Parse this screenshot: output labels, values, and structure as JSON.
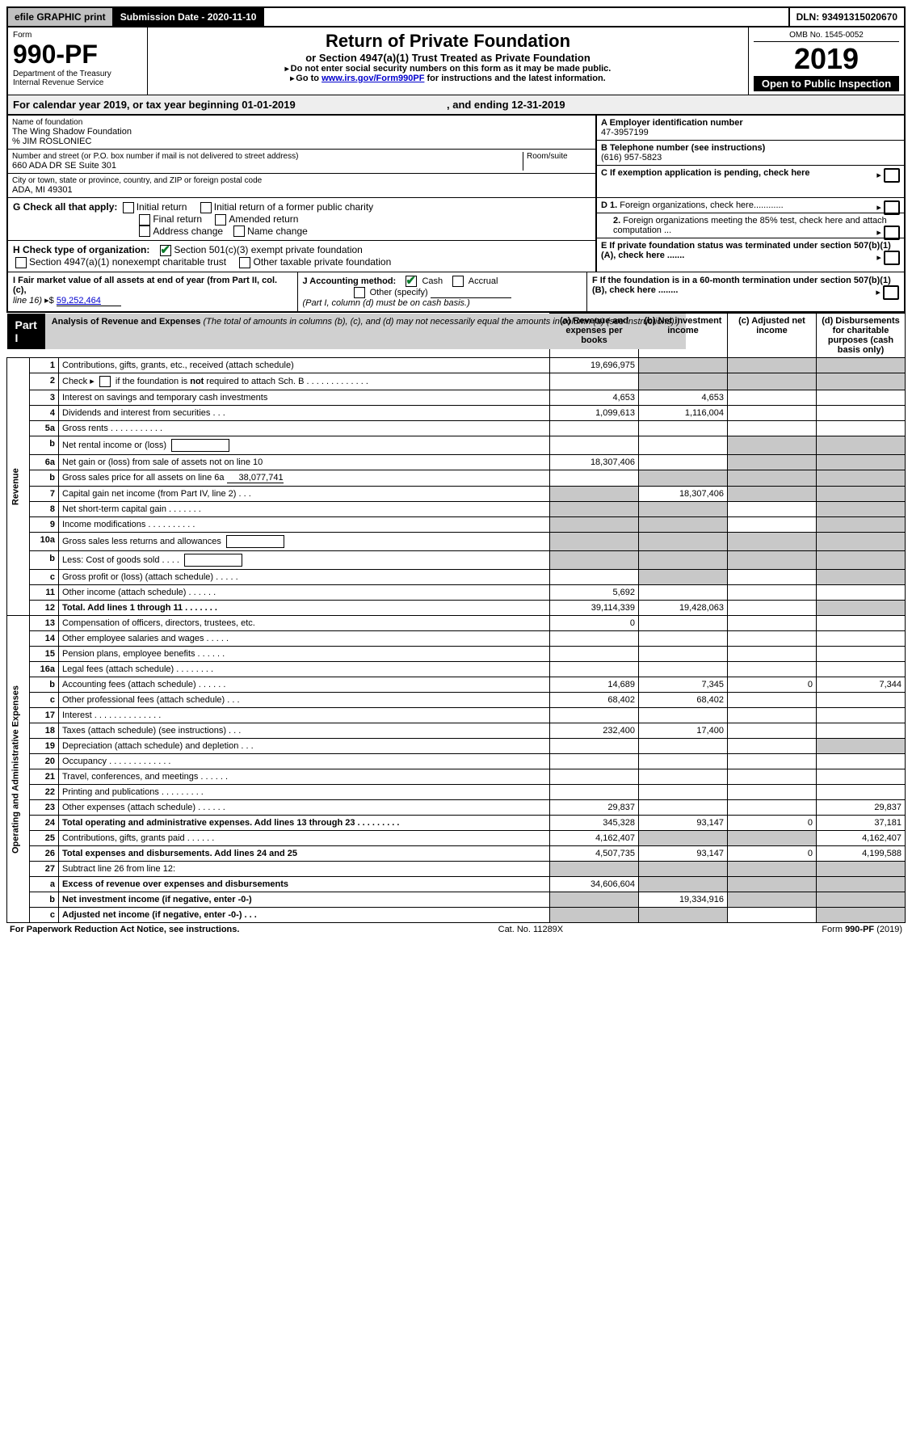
{
  "topbar": {
    "efile": "efile GRAPHIC print",
    "subdate_label": "Submission Date - 2020-11-10",
    "dln": "DLN: 93491315020670"
  },
  "header": {
    "form_label": "Form",
    "form_number": "990-PF",
    "dept": "Department of the Treasury",
    "irs": "Internal Revenue Service",
    "title": "Return of Private Foundation",
    "subtitle": "or Section 4947(a)(1) Trust Treated as Private Foundation",
    "note1": "Do not enter social security numbers on this form as it may be made public.",
    "note2_pre": "Go to ",
    "note2_link": "www.irs.gov/Form990PF",
    "note2_post": " for instructions and the latest information.",
    "omb": "OMB No. 1545-0052",
    "year": "2019",
    "open": "Open to Public Inspection"
  },
  "calyear": {
    "text_pre": "For calendar year 2019, or tax year beginning ",
    "begin": "01-01-2019",
    "mid": " , and ending ",
    "end": "12-31-2019"
  },
  "ident": {
    "name_label": "Name of foundation",
    "name": "The Wing Shadow Foundation",
    "care_of": "% JIM ROSLONIEC",
    "addr_label": "Number and street (or P.O. box number if mail is not delivered to street address)",
    "addr": "660 ADA DR SE Suite 301",
    "room_label": "Room/suite",
    "city_label": "City or town, state or province, country, and ZIP or foreign postal code",
    "city": "ADA, MI  49301",
    "A_label": "A Employer identification number",
    "A_val": "47-3957199",
    "B_label": "B Telephone number (see instructions)",
    "B_val": "(616) 957-5823",
    "C_label": "C If exemption application is pending, check here"
  },
  "checks": {
    "G_label": "G Check all that apply:",
    "G_opts": [
      "Initial return",
      "Initial return of a former public charity",
      "Final return",
      "Amended return",
      "Address change",
      "Name change"
    ],
    "H_label": "H Check type of organization:",
    "H_opt1": "Section 501(c)(3) exempt private foundation",
    "H_opt2": "Section 4947(a)(1) nonexempt charitable trust",
    "H_opt3": "Other taxable private foundation",
    "D1": "D 1. Foreign organizations, check here............",
    "D2": "2. Foreign organizations meeting the 85% test, check here and attach computation ...",
    "E": "E  If private foundation status was terminated under section 507(b)(1)(A), check here .......",
    "F": "F  If the foundation is in a 60-month termination under section 507(b)(1)(B), check here ........"
  },
  "lower": {
    "I_label": "I Fair market value of all assets at end of year (from Part II, col. (c),",
    "I_line16": "line 16)",
    "I_val": "59,252,464",
    "J_label": "J Accounting method:",
    "J_cash": "Cash",
    "J_accrual": "Accrual",
    "J_other": "Other (specify)",
    "J_note": "(Part I, column (d) must be on cash basis.)"
  },
  "part1": {
    "label": "Part I",
    "title": "Analysis of Revenue and Expenses",
    "title_note": "(The total of amounts in columns (b), (c), and (d) may not necessarily equal the amounts in column (a) (see instructions).)",
    "col_a": "(a)   Revenue and expenses per books",
    "col_b": "(b)  Net investment income",
    "col_c": "(c)  Adjusted net income",
    "col_d": "(d)  Disbursements for charitable purposes (cash basis only)"
  },
  "side_labels": {
    "revenue": "Revenue",
    "expenses": "Operating and Administrative Expenses"
  },
  "rows": [
    {
      "n": "1",
      "desc": "Contributions, gifts, grants, etc., received (attach schedule)",
      "a": "19,696,975",
      "b_shade": true,
      "c_shade": true,
      "d_shade": true
    },
    {
      "n": "2",
      "desc": "Check ▸ ☐ if the foundation is not required to attach Sch. B",
      "b_shade": true,
      "c_shade": true,
      "d_shade": true,
      "special": "check"
    },
    {
      "n": "3",
      "desc": "Interest on savings and temporary cash investments",
      "a": "4,653",
      "b": "4,653"
    },
    {
      "n": "4",
      "desc": "Dividends and interest from securities   .  .  .",
      "a": "1,099,613",
      "b": "1,116,004"
    },
    {
      "n": "5a",
      "desc": "Gross rents     .  .  .  .  .  .  .  .  .  .  ."
    },
    {
      "n": "b",
      "desc": "Net rental income or (loss)",
      "has_box": true,
      "c_shade": true,
      "d_shade": true
    },
    {
      "n": "6a",
      "desc": "Net gain or (loss) from sale of assets not on line 10",
      "a": "18,307,406",
      "c_shade": true,
      "d_shade": true
    },
    {
      "n": "b",
      "desc": "Gross sales price for all assets on line 6a",
      "inline_val": "38,077,741",
      "b_shade": true,
      "c_shade": true,
      "d_shade": true
    },
    {
      "n": "7",
      "desc": "Capital gain net income (from Part IV, line 2)   .  .  .",
      "a_shade": true,
      "b": "18,307,406",
      "c_shade": true,
      "d_shade": true
    },
    {
      "n": "8",
      "desc": "Net short-term capital gain   .  .  .  .  .  .  .",
      "a_shade": true,
      "b_shade": true,
      "d_shade": true
    },
    {
      "n": "9",
      "desc": "Income modifications  .  .  .  .  .  .  .  .  .  .",
      "a_shade": true,
      "b_shade": true,
      "d_shade": true
    },
    {
      "n": "10a",
      "desc": "Gross sales less returns and allowances",
      "has_box": true,
      "a_shade": true,
      "b_shade": true,
      "c_shade": true,
      "d_shade": true
    },
    {
      "n": "b",
      "desc": "Less: Cost of goods sold    .  .  .  .",
      "has_box": true,
      "a_shade": true,
      "b_shade": true,
      "c_shade": true,
      "d_shade": true
    },
    {
      "n": "c",
      "desc": "Gross profit or (loss) (attach schedule)   .  .  .  .  .",
      "b_shade": true,
      "d_shade": true
    },
    {
      "n": "11",
      "desc": "Other income (attach schedule)    .  .  .  .  .  .",
      "a": "5,692"
    },
    {
      "n": "12",
      "desc": "Total. Add lines 1 through 11    .  .  .  .  .  .  .",
      "bold": true,
      "a": "39,114,339",
      "b": "19,428,063",
      "d_shade": true
    },
    {
      "n": "13",
      "desc": "Compensation of officers, directors, trustees, etc.",
      "a": "0"
    },
    {
      "n": "14",
      "desc": "Other employee salaries and wages    .  .  .  .  ."
    },
    {
      "n": "15",
      "desc": "Pension plans, employee benefits   .  .  .  .  .  ."
    },
    {
      "n": "16a",
      "desc": "Legal fees (attach schedule)  .  .  .  .  .  .  .  ."
    },
    {
      "n": "b",
      "desc": "Accounting fees (attach schedule)  .  .  .  .  .  .",
      "a": "14,689",
      "b": "7,345",
      "c": "0",
      "d": "7,344"
    },
    {
      "n": "c",
      "desc": "Other professional fees (attach schedule)    .  .  .",
      "a": "68,402",
      "b": "68,402"
    },
    {
      "n": "17",
      "desc": "Interest   .  .  .  .  .  .  .  .  .  .  .  .  .  ."
    },
    {
      "n": "18",
      "desc": "Taxes (attach schedule) (see instructions)    .  .  .",
      "a": "232,400",
      "b": "17,400"
    },
    {
      "n": "19",
      "desc": "Depreciation (attach schedule) and depletion   .  .  .",
      "d_shade": true
    },
    {
      "n": "20",
      "desc": "Occupancy  .  .  .  .  .  .  .  .  .  .  .  .  ."
    },
    {
      "n": "21",
      "desc": "Travel, conferences, and meetings  .  .  .  .  .  ."
    },
    {
      "n": "22",
      "desc": "Printing and publications  .  .  .  .  .  .  .  .  ."
    },
    {
      "n": "23",
      "desc": "Other expenses (attach schedule)  .  .  .  .  .  .",
      "a": "29,837",
      "d": "29,837"
    },
    {
      "n": "24",
      "desc": "Total operating and administrative expenses. Add lines 13 through 23   .  .  .  .  .  .  .  .  .",
      "bold": true,
      "a": "345,328",
      "b": "93,147",
      "c": "0",
      "d": "37,181"
    },
    {
      "n": "25",
      "desc": "Contributions, gifts, grants paid    .  .  .  .  .  .",
      "a": "4,162,407",
      "b_shade": true,
      "c_shade": true,
      "d": "4,162,407"
    },
    {
      "n": "26",
      "desc": "Total expenses and disbursements. Add lines 24 and 25",
      "bold": true,
      "a": "4,507,735",
      "b": "93,147",
      "c": "0",
      "d": "4,199,588"
    },
    {
      "n": "27",
      "desc": "Subtract line 26 from line 12:",
      "a_shade": true,
      "b_shade": true,
      "c_shade": true,
      "d_shade": true
    },
    {
      "n": "a",
      "desc": "Excess of revenue over expenses and disbursements",
      "bold": true,
      "a": "34,606,604",
      "b_shade": true,
      "c_shade": true,
      "d_shade": true
    },
    {
      "n": "b",
      "desc": "Net investment income (if negative, enter -0-)",
      "bold": true,
      "a_shade": true,
      "b": "19,334,916",
      "c_shade": true,
      "d_shade": true
    },
    {
      "n": "c",
      "desc": "Adjusted net income (if negative, enter -0-)   .  .  .",
      "bold": true,
      "a_shade": true,
      "b_shade": true,
      "d_shade": true
    }
  ],
  "footer": {
    "left": "For Paperwork Reduction Act Notice, see instructions.",
    "mid": "Cat. No. 11289X",
    "right": "Form 990-PF (2019)"
  }
}
